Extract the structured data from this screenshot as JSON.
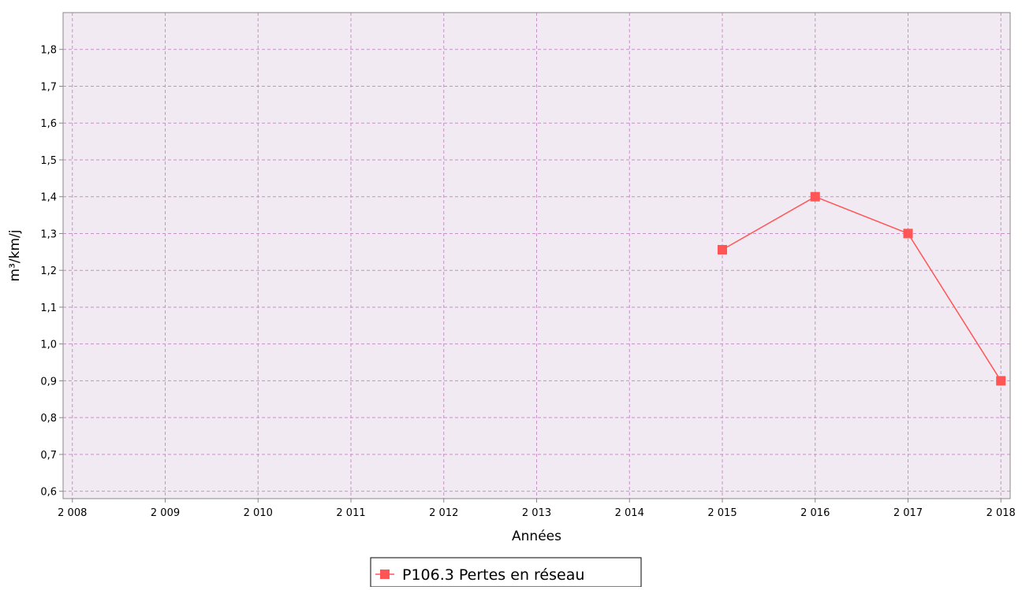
{
  "chart_data": {
    "type": "line",
    "title": "",
    "xlabel": "Années",
    "ylabel": "m³/km/j",
    "xlim": [
      2007.9,
      2018.1
    ],
    "ylim": [
      0.58,
      1.9
    ],
    "grid": true,
    "legend_position": "bottom-center",
    "x_ticks": [
      2008,
      2009,
      2010,
      2011,
      2012,
      2013,
      2014,
      2015,
      2016,
      2017,
      2018
    ],
    "x_tick_labels": [
      "2 008",
      "2 009",
      "2 010",
      "2 011",
      "2 012",
      "2 013",
      "2 014",
      "2 015",
      "2 016",
      "2 017",
      "2 018"
    ],
    "y_ticks": [
      0.6,
      0.7,
      0.8,
      0.9,
      1.0,
      1.1,
      1.2,
      1.3,
      1.4,
      1.5,
      1.6,
      1.7,
      1.8
    ],
    "y_tick_labels": [
      "0,6",
      "0,7",
      "0,8",
      "0,9",
      "1,0",
      "1,1",
      "1,2",
      "1,3",
      "1,4",
      "1,5",
      "1,6",
      "1,7",
      "1,8"
    ],
    "series": [
      {
        "name": "P106.3 Pertes en réseau",
        "color": "#ff5555",
        "x": [
          2015,
          2016,
          2017,
          2018
        ],
        "y": [
          1.256,
          1.4,
          1.3,
          0.9
        ]
      }
    ],
    "colors": {
      "plot_background": "#f2eaf2",
      "grid": "#c890c8",
      "axis": "#888888",
      "text": "#000000",
      "legend_border": "#000000"
    }
  }
}
